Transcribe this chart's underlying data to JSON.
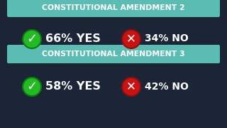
{
  "background_color": "#1c2535",
  "header_color": "#5abcb2",
  "header_text_color": "#ffffff",
  "rows": [
    {
      "header": "CONSTITUTIONAL AMENDMENT 2",
      "yes_pct": "66% YES",
      "no_pct": "34% NO"
    },
    {
      "header": "CONSTITUTIONAL AMENDMENT 3",
      "yes_pct": "58% YES",
      "no_pct": "42% NO"
    }
  ],
  "check_color": "#22bb22",
  "check_edge_color": "#117711",
  "x_color": "#cc1111",
  "x_edge_color": "#881111",
  "text_color": "#ffffff",
  "yes_fontsize": 11.5,
  "no_fontsize": 10,
  "header_fontsize": 7.8,
  "dot_pattern_color": "#22334a"
}
